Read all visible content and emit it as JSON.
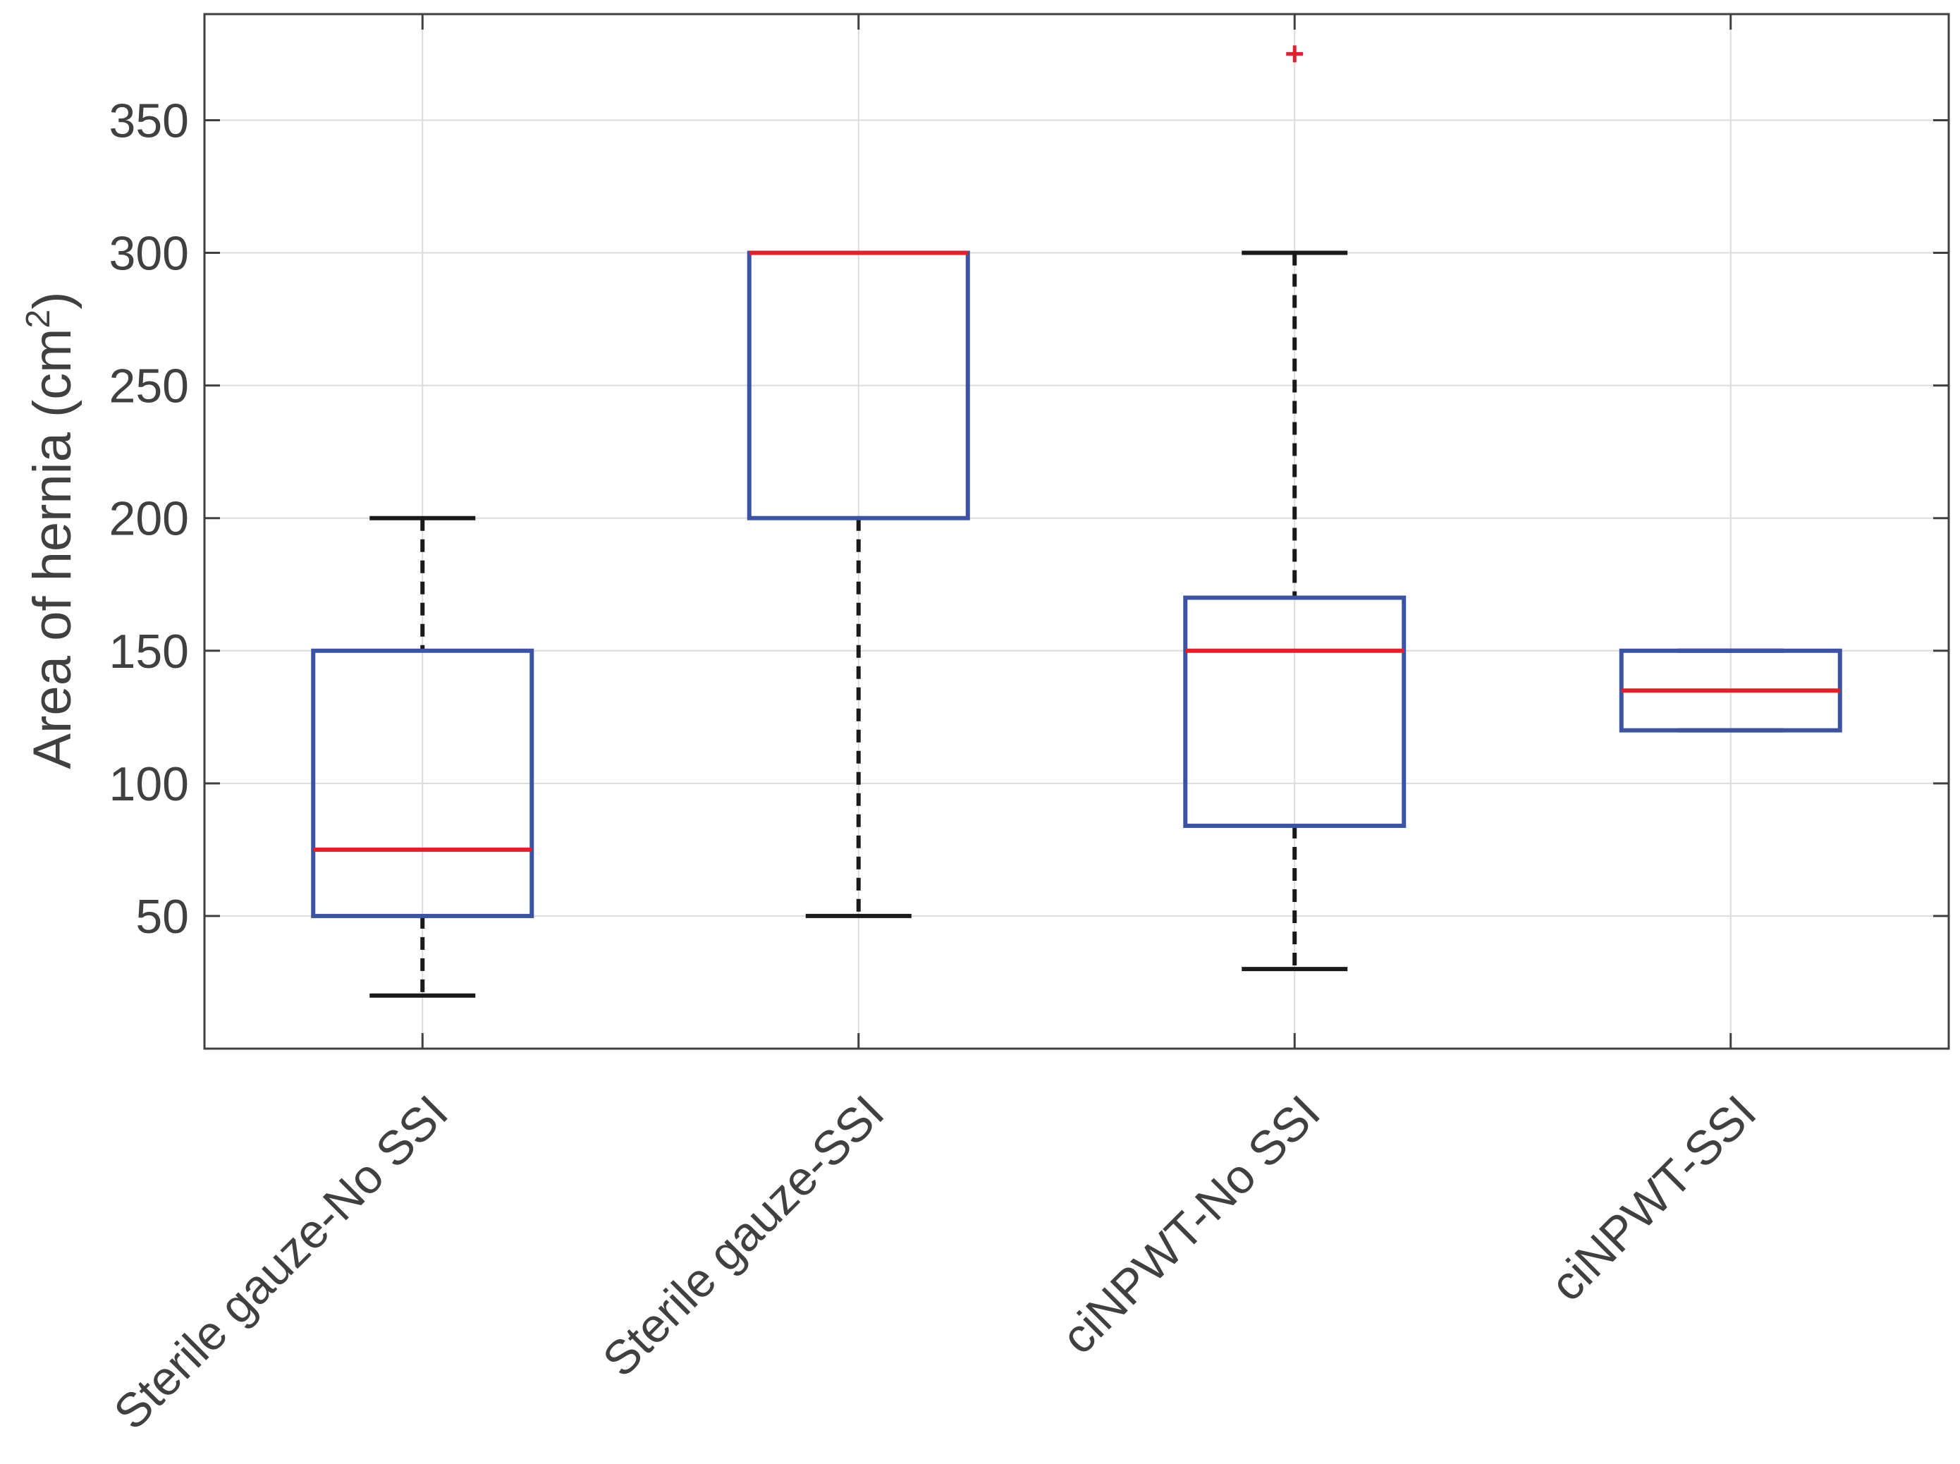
{
  "chart_data": {
    "type": "box",
    "title": "",
    "xlabel": "",
    "ylabel": "Area of hernia (cm",
    "ylabel_superscript": "2",
    "ylabel_suffix": ")",
    "ylim": [
      0,
      390
    ],
    "yticks": [
      50,
      100,
      150,
      200,
      250,
      300,
      350
    ],
    "grid": true,
    "categories": [
      "Sterile gauze-No SSI",
      "Sterile gauze-SSI",
      "ciNPWT-No SSI",
      "ciNPWT-SSI"
    ],
    "boxes": [
      {
        "name": "Sterile gauze-No SSI",
        "whisker_low": 20,
        "q1": 50,
        "median": 75,
        "q3": 150,
        "whisker_high": 200,
        "outliers": []
      },
      {
        "name": "Sterile gauze-SSI",
        "whisker_low": 50,
        "q1": 200,
        "median": 300,
        "q3": 300,
        "whisker_high": 300,
        "outliers": []
      },
      {
        "name": "ciNPWT-No SSI",
        "whisker_low": 30,
        "q1": 84,
        "median": 150,
        "q3": 170,
        "whisker_high": 300,
        "outliers": [
          375
        ]
      },
      {
        "name": "ciNPWT-SSI",
        "whisker_low": 120,
        "q1": 120,
        "median": 135,
        "q3": 150,
        "whisker_high": 150,
        "outliers": []
      }
    ],
    "colors": {
      "box": "#3a53a4",
      "median": "#e0202a",
      "whisker": "#1a1a1a",
      "outlier": "#e0202a",
      "grid": "#dcdcdc",
      "axis": "#404040"
    }
  }
}
